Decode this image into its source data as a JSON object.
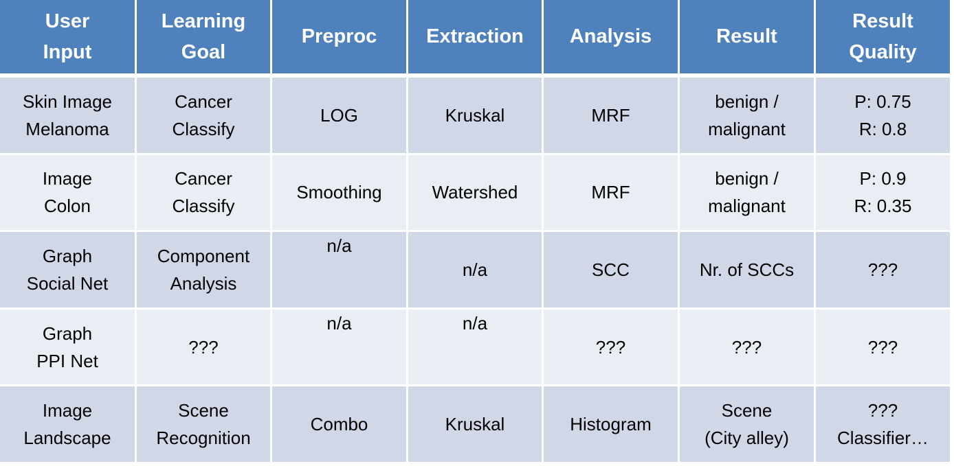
{
  "table": {
    "headers": [
      [
        "User",
        "Input"
      ],
      [
        "Learning",
        "Goal"
      ],
      [
        "Preproc"
      ],
      [
        "Extraction"
      ],
      [
        "Analysis"
      ],
      [
        "Result"
      ],
      [
        "Result",
        "Quality"
      ]
    ],
    "rows": [
      [
        [
          "Skin Image",
          "Melanoma"
        ],
        [
          "Cancer",
          "Classify"
        ],
        [
          "LOG"
        ],
        [
          "Kruskal"
        ],
        [
          "MRF"
        ],
        [
          "benign /",
          "malignant"
        ],
        [
          "P: 0.75",
          "R: 0.8"
        ]
      ],
      [
        [
          "Image",
          "Colon"
        ],
        [
          "Cancer",
          "Classify"
        ],
        [
          "Smoothing"
        ],
        [
          "Watershed"
        ],
        [
          "MRF"
        ],
        [
          "benign /",
          "malignant"
        ],
        [
          "P: 0.9",
          "R: 0.35"
        ]
      ],
      [
        [
          "Graph",
          "Social Net"
        ],
        [
          "Component",
          "Analysis"
        ],
        [
          "n/a"
        ],
        [
          "n/a"
        ],
        [
          "SCC"
        ],
        [
          "Nr. of SCCs"
        ],
        [
          "???"
        ]
      ],
      [
        [
          "Graph",
          "PPI Net"
        ],
        [
          "???"
        ],
        [
          "n/a"
        ],
        [
          "n/a"
        ],
        [
          "???"
        ],
        [
          "???"
        ],
        [
          "???"
        ]
      ],
      [
        [
          "Image",
          "Landscape"
        ],
        [
          "Scene",
          "Recognition"
        ],
        [
          "Combo"
        ],
        [
          "Kruskal"
        ],
        [
          "Histogram"
        ],
        [
          "Scene",
          "(City alley)"
        ],
        [
          "???",
          "Classifier…"
        ]
      ]
    ]
  }
}
